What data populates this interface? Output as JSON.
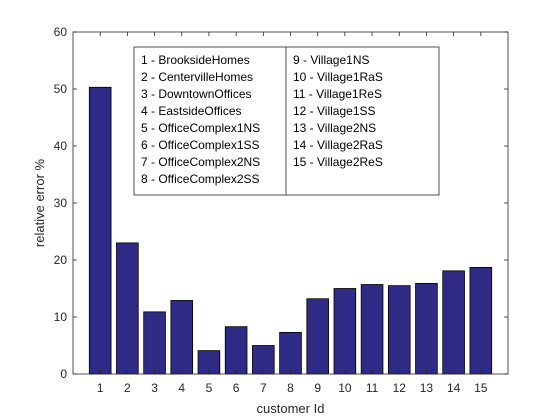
{
  "chart_data": {
    "type": "bar",
    "categories": [
      "1",
      "2",
      "3",
      "4",
      "5",
      "6",
      "7",
      "8",
      "9",
      "10",
      "11",
      "12",
      "13",
      "14",
      "15"
    ],
    "values": [
      50.3,
      23.0,
      10.9,
      12.9,
      4.1,
      8.3,
      5.0,
      7.3,
      13.2,
      15.0,
      15.7,
      15.5,
      15.9,
      18.1,
      18.7
    ],
    "xlabel": "customer Id",
    "ylabel": "relative error %",
    "ylim": [
      0,
      60
    ],
    "yticks": [
      0,
      10,
      20,
      30,
      40,
      50,
      60
    ],
    "grid": false,
    "bar_color": "#2e2a85",
    "legend_placement": "top-center",
    "legend": {
      "column1": [
        "1 - BrooksideHomes",
        "2 - CentervilleHomes",
        "3 - DowntownOffices",
        "4 - EastsideOffices",
        "5 - OfficeComplex1NS",
        "6 - OfficeComplex1SS",
        "7 - OfficeComplex2NS",
        "8 - OfficeComplex2SS"
      ],
      "column2": [
        "9 - Village1NS",
        "10 - Village1RaS",
        "11 - Village1ReS",
        "12 - Village1SS",
        "13 - Village2NS",
        "14 - Village2RaS",
        "15 - Village2ReS"
      ]
    }
  }
}
